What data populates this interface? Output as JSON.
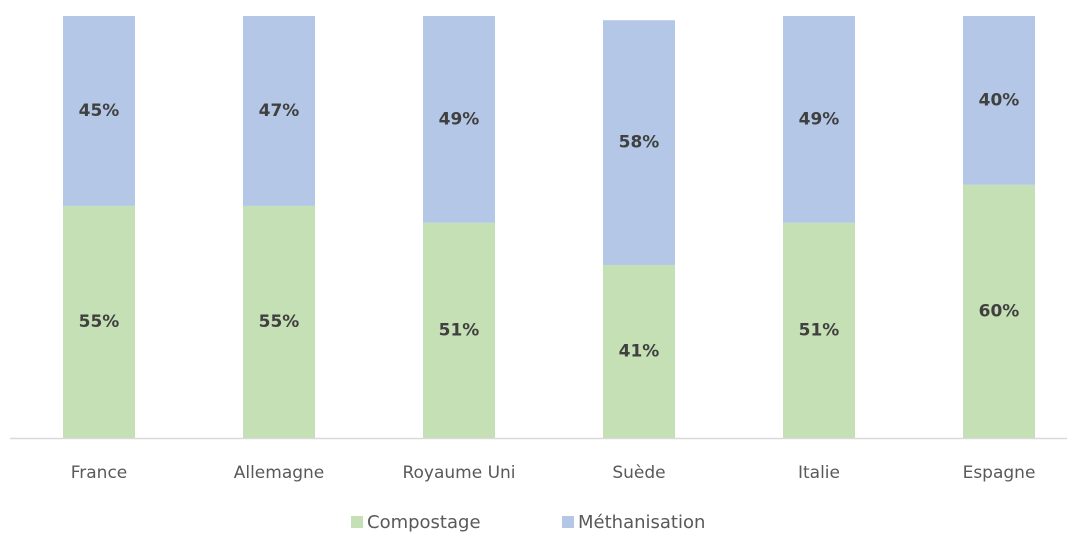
{
  "chart_data": {
    "type": "stacked_bar",
    "categories": [
      "France",
      "Allemagne",
      "Royaume Uni",
      "Suède",
      "Italie",
      "Espagne"
    ],
    "series": [
      {
        "name": "Compostage",
        "color": "#c5e0b4",
        "values": [
          55,
          55,
          51,
          41,
          51,
          60
        ],
        "value_labels": [
          "55%",
          "55%",
          "51%",
          "41%",
          "51%",
          "60%"
        ]
      },
      {
        "name": "Méthanisation",
        "color": "#b4c7e7",
        "values": [
          45,
          47,
          49,
          58,
          49,
          40
        ],
        "value_labels": [
          "45%",
          "47%",
          "49%",
          "58%",
          "49%",
          "40%"
        ]
      }
    ],
    "ylim": [
      0,
      100
    ],
    "legend": "bottom"
  }
}
